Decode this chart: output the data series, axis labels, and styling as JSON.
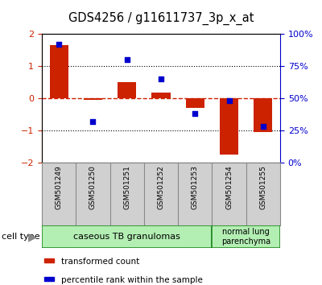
{
  "title": "GDS4256 / g11611737_3p_x_at",
  "samples": [
    "GSM501249",
    "GSM501250",
    "GSM501251",
    "GSM501252",
    "GSM501253",
    "GSM501254",
    "GSM501255"
  ],
  "red_values": [
    1.65,
    -0.05,
    0.5,
    0.18,
    -0.3,
    -1.75,
    -1.05
  ],
  "blue_values": [
    92,
    32,
    80,
    65,
    38,
    48,
    28
  ],
  "ylim_left": [
    -2,
    2
  ],
  "ylim_right": [
    0,
    100
  ],
  "yticks_left": [
    -2,
    -1,
    0,
    1,
    2
  ],
  "yticks_right": [
    0,
    25,
    50,
    75,
    100
  ],
  "ytick_labels_right": [
    "0%",
    "25%",
    "50%",
    "75%",
    "100%"
  ],
  "group1_label": "caseous TB granulomas",
  "group2_label": "normal lung\nparenchyma",
  "group1_count": 5,
  "group2_count": 2,
  "cell_color": "#B3EEB3",
  "bar_color": "#CC2200",
  "dot_color": "#0000CC",
  "zero_line_color": "#CC2200",
  "dot_grid_color": "#000000",
  "bar_width": 0.55,
  "xlabel_bg": "#D0D0D0",
  "legend_red_label": "transformed count",
  "legend_blue_label": "percentile rank within the sample"
}
